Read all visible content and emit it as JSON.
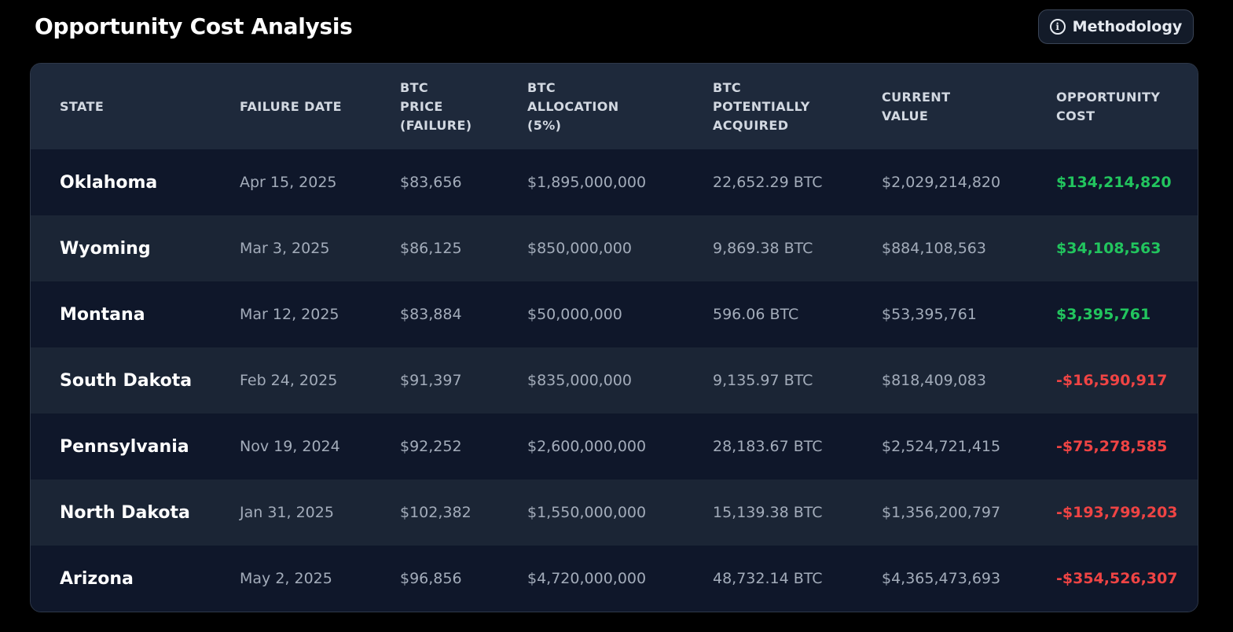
{
  "header": {
    "title": "Opportunity Cost Analysis",
    "methodology_label": "Methodology",
    "methodology_icon": "info-icon"
  },
  "table": {
    "columns": [
      "STATE",
      "FAILURE DATE",
      "BTC\nPRICE\n(FAILURE)",
      "BTC\nALLOCATION\n(5%)",
      "BTC\nPOTENTIALLY\nACQUIRED",
      "CURRENT\nVALUE",
      "OPPORTUNITY\nCOST"
    ],
    "rows": [
      {
        "state": "Oklahoma",
        "failure_date": "Apr 15, 2025",
        "btc_price": "$83,656",
        "allocation": "$1,895,000,000",
        "btc_acquired": "22,652.29 BTC",
        "current_value": "$2,029,214,820",
        "opportunity_cost": "$134,214,820",
        "cost_sign": "pos"
      },
      {
        "state": "Wyoming",
        "failure_date": "Mar 3, 2025",
        "btc_price": "$86,125",
        "allocation": "$850,000,000",
        "btc_acquired": "9,869.38 BTC",
        "current_value": "$884,108,563",
        "opportunity_cost": "$34,108,563",
        "cost_sign": "pos"
      },
      {
        "state": "Montana",
        "failure_date": "Mar 12, 2025",
        "btc_price": "$83,884",
        "allocation": "$50,000,000",
        "btc_acquired": "596.06 BTC",
        "current_value": "$53,395,761",
        "opportunity_cost": "$3,395,761",
        "cost_sign": "pos"
      },
      {
        "state": "South Dakota",
        "failure_date": "Feb 24, 2025",
        "btc_price": "$91,397",
        "allocation": "$835,000,000",
        "btc_acquired": "9,135.97 BTC",
        "current_value": "$818,409,083",
        "opportunity_cost": "-$16,590,917",
        "cost_sign": "neg"
      },
      {
        "state": "Pennsylvania",
        "failure_date": "Nov 19, 2024",
        "btc_price": "$92,252",
        "allocation": "$2,600,000,000",
        "btc_acquired": "28,183.67 BTC",
        "current_value": "$2,524,721,415",
        "opportunity_cost": "-$75,278,585",
        "cost_sign": "neg"
      },
      {
        "state": "North Dakota",
        "failure_date": "Jan 31, 2025",
        "btc_price": "$102,382",
        "allocation": "$1,550,000,000",
        "btc_acquired": "15,139.38 BTC",
        "current_value": "$1,356,200,797",
        "opportunity_cost": "-$193,799,203",
        "cost_sign": "neg"
      },
      {
        "state": "Arizona",
        "failure_date": "May 2, 2025",
        "btc_price": "$96,856",
        "allocation": "$4,720,000,000",
        "btc_acquired": "48,732.14 BTC",
        "current_value": "$4,365,473,693",
        "opportunity_cost": "-$354,526,307",
        "cost_sign": "neg"
      }
    ]
  },
  "colors": {
    "positive": "#22c55e",
    "negative": "#ef4444",
    "header_bg": "#1e293b",
    "row_bg": "#0f172a",
    "row_alt_bg": "#1b2535",
    "page_bg": "#000000"
  }
}
